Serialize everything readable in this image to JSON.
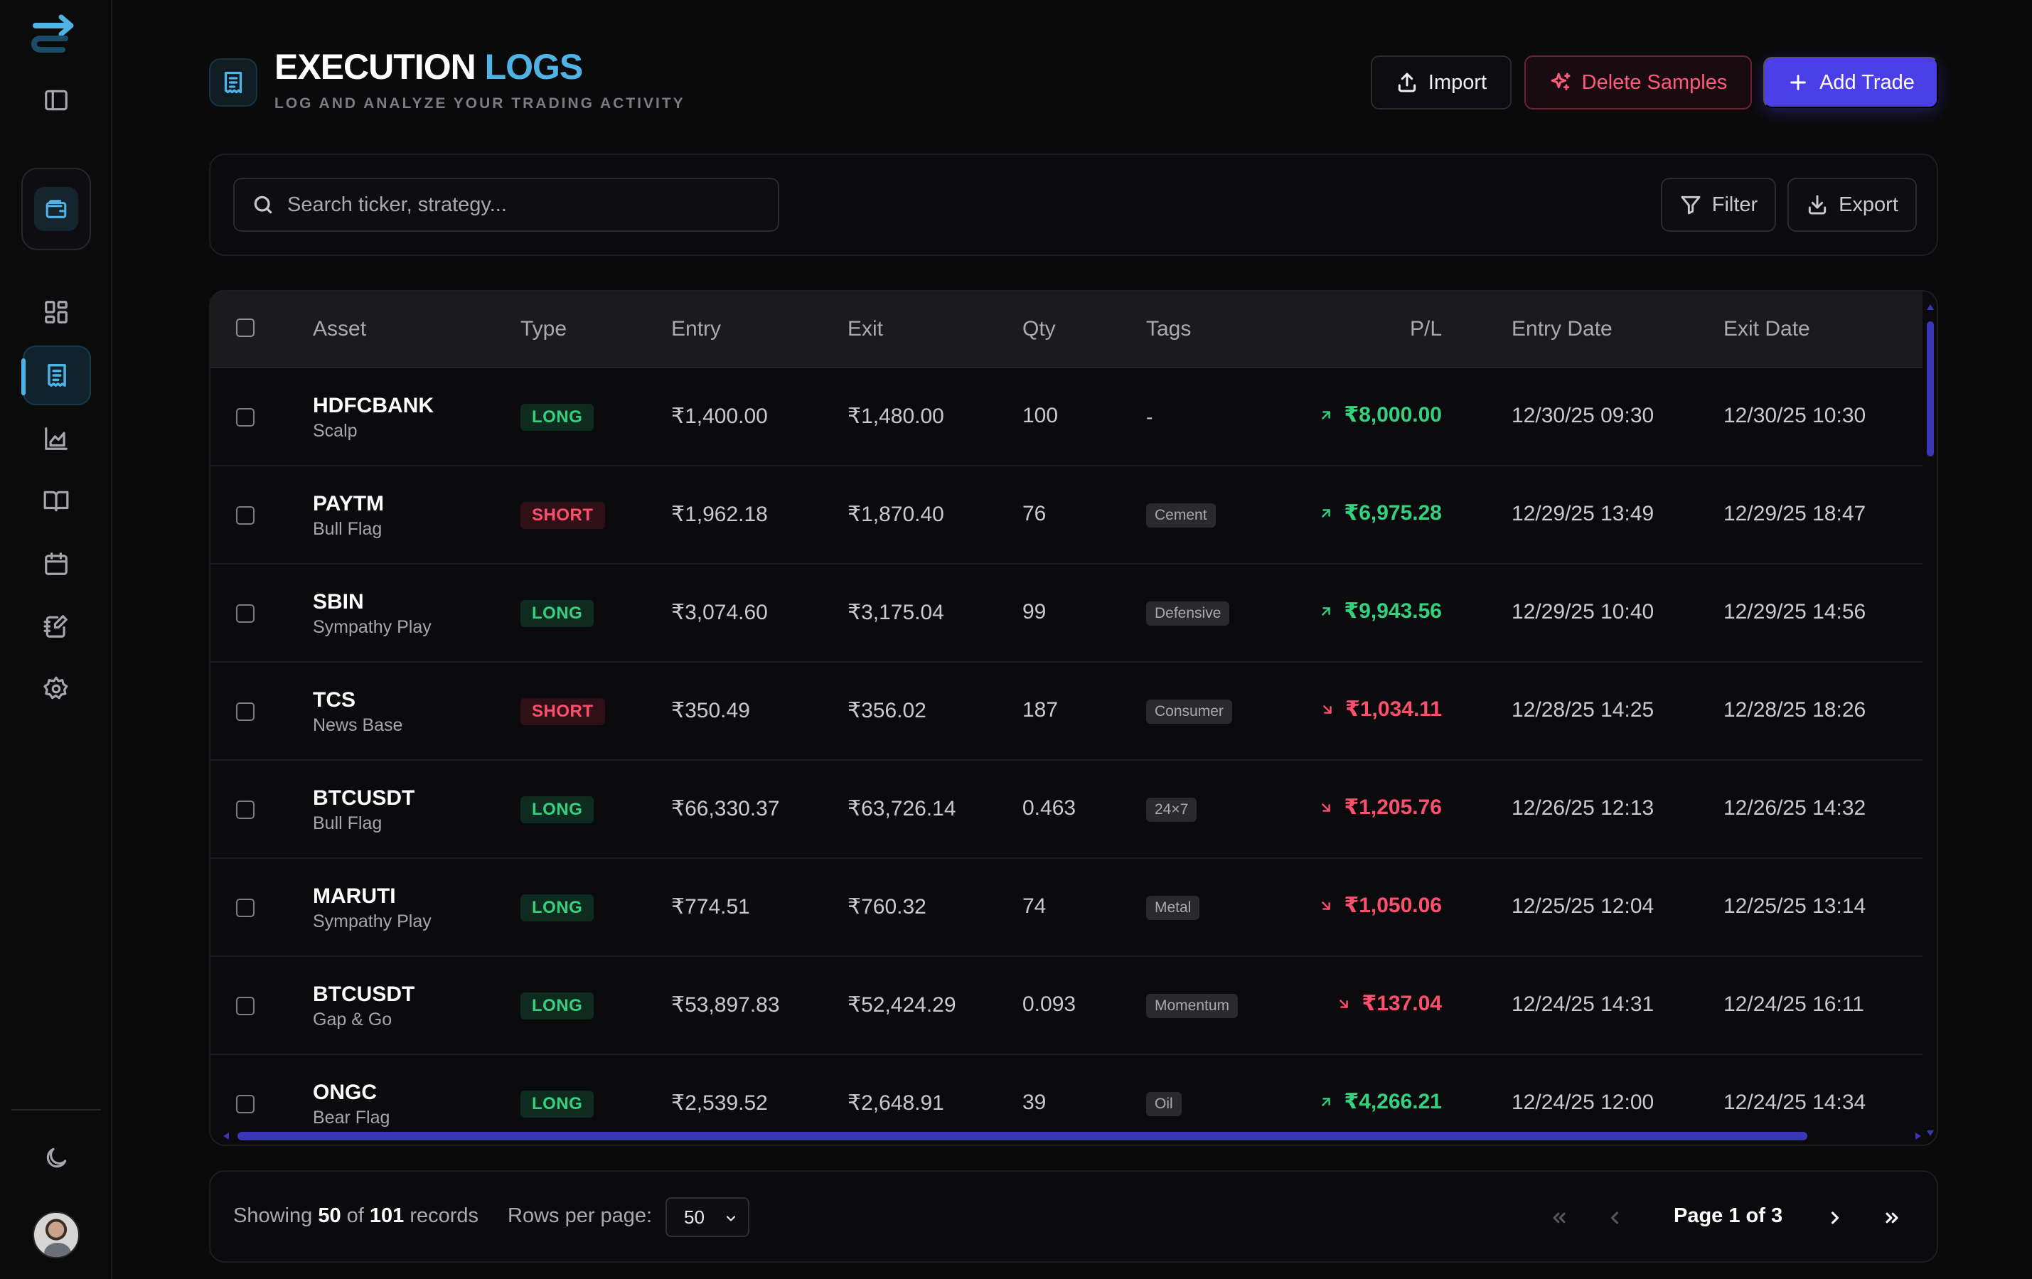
{
  "header": {
    "title_primary": "EXECUTION",
    "title_accent": "LOGS",
    "subtitle": "LOG AND ANALYZE YOUR TRADING ACTIVITY",
    "import_label": "Import",
    "delete_label": "Delete Samples",
    "add_label": "Add Trade"
  },
  "search": {
    "placeholder": "Search ticker, strategy...",
    "value": "",
    "filter_label": "Filter",
    "export_label": "Export"
  },
  "table": {
    "columns": [
      "Asset",
      "Type",
      "Entry",
      "Exit",
      "Qty",
      "Tags",
      "P/L",
      "Entry Date",
      "Exit Date"
    ],
    "rows": [
      {
        "ticker": "HDFCBANK",
        "strategy": "Scalp",
        "type": "LONG",
        "entry": "₹1,400.00",
        "exit": "₹1,480.00",
        "qty": "100",
        "tag": "-",
        "pl": "₹8,000.00",
        "pl_dir": "up",
        "entry_date": "12/30/25 09:30",
        "exit_date": "12/30/25 10:30"
      },
      {
        "ticker": "PAYTM",
        "strategy": "Bull Flag",
        "type": "SHORT",
        "entry": "₹1,962.18",
        "exit": "₹1,870.40",
        "qty": "76",
        "tag": "Cement",
        "pl": "₹6,975.28",
        "pl_dir": "up",
        "entry_date": "12/29/25 13:49",
        "exit_date": "12/29/25 18:47"
      },
      {
        "ticker": "SBIN",
        "strategy": "Sympathy Play",
        "type": "LONG",
        "entry": "₹3,074.60",
        "exit": "₹3,175.04",
        "qty": "99",
        "tag": "Defensive",
        "pl": "₹9,943.56",
        "pl_dir": "up",
        "entry_date": "12/29/25 10:40",
        "exit_date": "12/29/25 14:56"
      },
      {
        "ticker": "TCS",
        "strategy": "News Base",
        "type": "SHORT",
        "entry": "₹350.49",
        "exit": "₹356.02",
        "qty": "187",
        "tag": "Consumer",
        "pl": "₹1,034.11",
        "pl_dir": "down",
        "entry_date": "12/28/25 14:25",
        "exit_date": "12/28/25 18:26"
      },
      {
        "ticker": "BTCUSDT",
        "strategy": "Bull Flag",
        "type": "LONG",
        "entry": "₹66,330.37",
        "exit": "₹63,726.14",
        "qty": "0.463",
        "tag": "24×7",
        "pl": "₹1,205.76",
        "pl_dir": "down",
        "entry_date": "12/26/25 12:13",
        "exit_date": "12/26/25 14:32"
      },
      {
        "ticker": "MARUTI",
        "strategy": "Sympathy Play",
        "type": "LONG",
        "entry": "₹774.51",
        "exit": "₹760.32",
        "qty": "74",
        "tag": "Metal",
        "pl": "₹1,050.06",
        "pl_dir": "down",
        "entry_date": "12/25/25 12:04",
        "exit_date": "12/25/25 13:14"
      },
      {
        "ticker": "BTCUSDT",
        "strategy": "Gap & Go",
        "type": "LONG",
        "entry": "₹53,897.83",
        "exit": "₹52,424.29",
        "qty": "0.093",
        "tag": "Momentum",
        "pl": "₹137.04",
        "pl_dir": "down",
        "entry_date": "12/24/25 14:31",
        "exit_date": "12/24/25 16:11"
      },
      {
        "ticker": "ONGC",
        "strategy": "Bear Flag",
        "type": "LONG",
        "entry": "₹2,539.52",
        "exit": "₹2,648.91",
        "qty": "39",
        "tag": "Oil",
        "pl": "₹4,266.21",
        "pl_dir": "up",
        "entry_date": "12/24/25 12:00",
        "exit_date": "12/24/25 14:34"
      }
    ]
  },
  "footer": {
    "showing_prefix": "Showing",
    "shown": "50",
    "of_word": "of",
    "total": "101",
    "records_word": "records",
    "rows_per_page_label": "Rows per page:",
    "rows_per_page": "50",
    "page_label": "Page 1 of 3"
  },
  "colors": {
    "accent": "#4fb3e6",
    "primary": "#4a3fe6",
    "profit": "#34d17e",
    "loss": "#ff4f6d"
  }
}
